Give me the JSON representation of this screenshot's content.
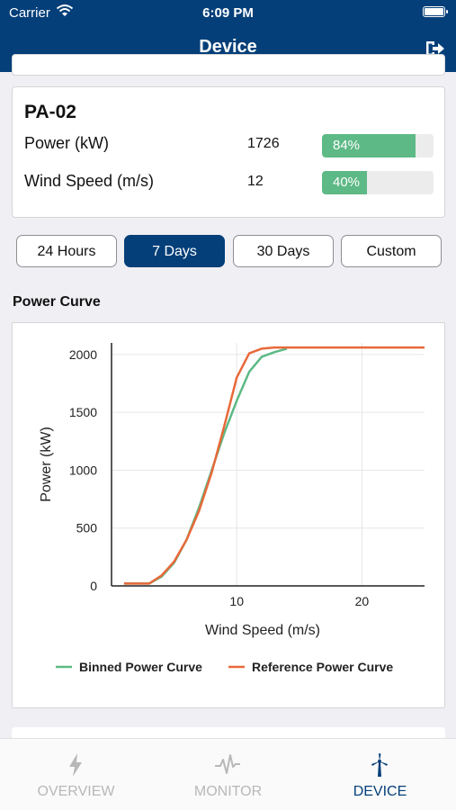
{
  "status_bar": {
    "carrier": "Carrier",
    "time": "6:09 PM"
  },
  "header": {
    "title": "Device"
  },
  "device": {
    "name": "PA-02",
    "metrics": [
      {
        "label": "Power (kW)",
        "value": "1726",
        "percent_label": "84%",
        "percent": 84
      },
      {
        "label": "Wind Speed (m/s)",
        "value": "12",
        "percent_label": "40%",
        "percent": 40
      }
    ]
  },
  "time_ranges": [
    {
      "label": "24 Hours",
      "active": false
    },
    {
      "label": "7 Days",
      "active": true
    },
    {
      "label": "30 Days",
      "active": false
    },
    {
      "label": "Custom",
      "active": false
    }
  ],
  "section": {
    "title": "Power Curve"
  },
  "chart_data": {
    "type": "line",
    "xlabel": "Wind Speed (m/s)",
    "ylabel": "Power (kW)",
    "xlim": [
      0,
      25
    ],
    "ylim": [
      0,
      2100
    ],
    "x_ticks": [
      10,
      20
    ],
    "y_ticks": [
      0,
      500,
      1000,
      1500,
      2000
    ],
    "legend_position": "bottom",
    "series": [
      {
        "name": "Binned Power Curve",
        "color": "#5db985",
        "x": [
          1,
          2,
          3,
          4,
          5,
          6,
          7,
          8,
          9,
          10,
          11,
          12,
          13,
          14
        ],
        "y": [
          20,
          20,
          20,
          80,
          200,
          400,
          680,
          1000,
          1320,
          1600,
          1850,
          1980,
          2020,
          2050
        ]
      },
      {
        "name": "Reference Power Curve",
        "color": "#e8693a",
        "x": [
          1,
          2,
          3,
          4,
          5,
          6,
          7,
          8,
          9,
          10,
          11,
          12,
          13,
          14,
          15,
          20,
          25
        ],
        "y": [
          20,
          20,
          20,
          90,
          210,
          400,
          650,
          980,
          1380,
          1800,
          2010,
          2050,
          2060,
          2060,
          2060,
          2060,
          2060
        ]
      }
    ]
  },
  "tabs": [
    {
      "label": "OVERVIEW",
      "icon": "bolt-icon",
      "active": false
    },
    {
      "label": "MONITOR",
      "icon": "pulse-icon",
      "active": false
    },
    {
      "label": "DEVICE",
      "icon": "wind-turbine-icon",
      "active": true
    }
  ],
  "colors": {
    "primary": "#053f79",
    "bar_fill": "#5db985",
    "inactive": "#b8b8b8"
  }
}
